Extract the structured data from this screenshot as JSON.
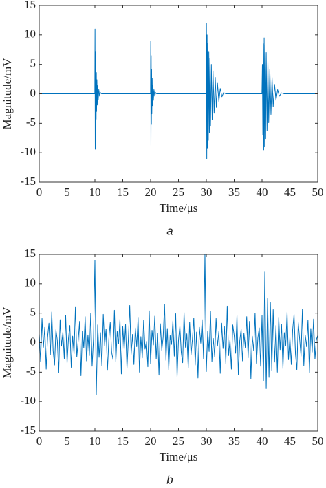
{
  "chart_data": [
    {
      "type": "line",
      "xlabel": "Time/μs",
      "ylabel": "Magnitude/mV",
      "caption": "a",
      "color": "#0072bd",
      "xlim": [
        0,
        50
      ],
      "ylim": [
        -15,
        15
      ],
      "xticks": [
        0,
        5,
        10,
        15,
        20,
        25,
        30,
        35,
        40,
        45,
        50
      ],
      "yticks": [
        -15,
        -10,
        -5,
        0,
        5,
        10,
        15
      ],
      "grid": false,
      "x": [
        0,
        9.98,
        10.02,
        10.06,
        10.1,
        10.14,
        10.18,
        10.22,
        10.26,
        10.3,
        10.36,
        10.42,
        10.5,
        10.6,
        10.7,
        10.85,
        11,
        11.2,
        19.98,
        20.02,
        20.06,
        20.1,
        20.14,
        20.18,
        20.22,
        20.28,
        20.34,
        20.42,
        20.5,
        20.6,
        20.75,
        20.9,
        21.1,
        29.98,
        30.02,
        30.08,
        30.14,
        30.2,
        30.28,
        30.36,
        30.45,
        30.55,
        30.65,
        30.75,
        30.9,
        31.05,
        31.2,
        31.4,
        31.6,
        31.8,
        32.0,
        32.25,
        32.5,
        32.8,
        33.1,
        33.5,
        39.98,
        40.06,
        40.14,
        40.22,
        40.3,
        40.38,
        40.46,
        40.55,
        40.65,
        40.75,
        40.9,
        41.05,
        41.2,
        41.4,
        41.6,
        41.8,
        42.0,
        42.25,
        42.5,
        42.8,
        43.1,
        43.5,
        44,
        50
      ],
      "values": [
        0,
        0,
        11,
        -9.4,
        7.2,
        -6,
        5,
        -4.3,
        3.6,
        -3,
        2.4,
        -1.9,
        1.4,
        -1,
        0.7,
        -0.4,
        0.2,
        0,
        0,
        9,
        -8.8,
        6.5,
        -5.2,
        4.2,
        -3.4,
        2.6,
        -2,
        1.5,
        -1.1,
        0.7,
        -0.4,
        0.2,
        0,
        0,
        12,
        -11,
        10,
        -9.3,
        8.6,
        -7.9,
        7.2,
        -6.6,
        6,
        -5.5,
        5,
        -4.4,
        3.9,
        -3.3,
        2.8,
        -2.3,
        1.8,
        -1.3,
        0.9,
        -0.5,
        0.2,
        0,
        0,
        5,
        -7,
        8.5,
        -9.5,
        9.5,
        -9,
        8.3,
        -7.6,
        7,
        -6.3,
        5.6,
        -4.9,
        4.2,
        -3.5,
        2.8,
        -2.2,
        1.6,
        -1.1,
        0.7,
        -0.4,
        0.15,
        0,
        0
      ]
    },
    {
      "type": "line",
      "xlabel": "Time/μs",
      "ylabel": "Magnitude/mV",
      "caption": "b",
      "color": "#0072bd",
      "xlim": [
        0,
        50
      ],
      "ylim": [
        -15,
        15
      ],
      "xticks": [
        0,
        5,
        10,
        15,
        20,
        25,
        30,
        35,
        40,
        45,
        50
      ],
      "yticks": [
        -15,
        -10,
        -5,
        0,
        5,
        10,
        15
      ],
      "grid": false,
      "x": [
        0,
        0.25,
        0.5,
        0.75,
        1,
        1.25,
        1.5,
        1.75,
        2,
        2.25,
        2.5,
        2.75,
        3,
        3.25,
        3.5,
        3.75,
        4,
        4.25,
        4.5,
        4.75,
        5,
        5.25,
        5.5,
        5.75,
        6,
        6.25,
        6.5,
        6.75,
        7,
        7.25,
        7.5,
        7.75,
        8,
        8.25,
        8.5,
        8.75,
        9,
        9.25,
        9.5,
        9.75,
        10,
        10.25,
        10.5,
        10.75,
        11,
        11.25,
        11.5,
        11.75,
        12,
        12.25,
        12.5,
        12.75,
        13,
        13.25,
        13.5,
        13.75,
        14,
        14.25,
        14.5,
        14.75,
        15,
        15.25,
        15.5,
        15.75,
        16,
        16.25,
        16.5,
        16.75,
        17,
        17.25,
        17.5,
        17.75,
        18,
        18.25,
        18.5,
        18.75,
        19,
        19.25,
        19.5,
        19.75,
        20,
        20.25,
        20.5,
        20.75,
        21,
        21.25,
        21.5,
        21.75,
        22,
        22.25,
        22.5,
        22.75,
        23,
        23.25,
        23.5,
        23.75,
        24,
        24.25,
        24.5,
        24.75,
        25,
        25.25,
        25.5,
        25.75,
        26,
        26.25,
        26.5,
        26.75,
        27,
        27.25,
        27.5,
        27.75,
        28,
        28.25,
        28.5,
        28.75,
        29,
        29.25,
        29.5,
        29.75,
        30,
        30.25,
        30.5,
        30.75,
        31,
        31.25,
        31.5,
        31.75,
        32,
        32.25,
        32.5,
        32.75,
        33,
        33.25,
        33.5,
        33.75,
        34,
        34.25,
        34.5,
        34.75,
        35,
        35.25,
        35.5,
        35.75,
        36,
        36.25,
        36.5,
        36.75,
        37,
        37.25,
        37.5,
        37.75,
        38,
        38.25,
        38.5,
        38.75,
        39,
        39.25,
        39.5,
        39.75,
        40,
        40.25,
        40.5,
        40.75,
        41,
        41.25,
        41.5,
        41.75,
        42,
        42.25,
        42.5,
        42.75,
        43,
        43.25,
        43.5,
        43.75,
        44,
        44.25,
        44.5,
        44.75,
        45,
        45.25,
        45.5,
        45.75,
        46,
        46.25,
        46.5,
        46.75,
        47,
        47.25,
        47.5,
        47.75,
        48,
        48.25,
        48.5,
        48.75,
        49,
        49.25,
        49.5,
        49.75,
        50
      ],
      "values": [
        1.5,
        -3.2,
        4.1,
        -0.8,
        2.6,
        -4.5,
        0.9,
        3.3,
        -2.1,
        5.2,
        -1.4,
        -3.8,
        2.2,
        0.4,
        -5.1,
        3.9,
        -0.6,
        1.8,
        -2.7,
        4.6,
        -3.5,
        0.7,
        2.9,
        -4.2,
        1.1,
        -1.9,
        6.1,
        -2.4,
        0.3,
        3.6,
        -5.6,
        2.0,
        -0.9,
        4.4,
        -3.1,
        1.3,
        -2.2,
        5.0,
        -4.0,
        0.8,
        14,
        -8.8,
        3.0,
        -2.5,
        1.7,
        -3.9,
        4.8,
        -0.5,
        2.3,
        -4.7,
        0.6,
        3.4,
        -1.6,
        -2.9,
        5.5,
        -3.3,
        1.9,
        -0.2,
        4.0,
        -5.3,
        2.7,
        -1.2,
        3.1,
        -4.4,
        0.5,
        6.3,
        -2.0,
        1.4,
        -3.7,
        2.5,
        -0.7,
        4.3,
        -5.0,
        1.0,
        -2.6,
        3.8,
        -1.1,
        0.2,
        -4.1,
        5.4,
        -3.6,
        2.1,
        -0.4,
        4.5,
        -2.8,
        1.6,
        -5.5,
        3.2,
        -1.3,
        0.9,
        6.5,
        -3.0,
        2.4,
        -4.6,
        1.2,
        -0.3,
        3.7,
        -2.3,
        4.9,
        -5.8,
        0.4,
        2.8,
        -1.7,
        -3.4,
        5.1,
        -0.8,
        1.5,
        -4.3,
        3.5,
        -2.1,
        0.6,
        4.2,
        -3.8,
        1.8,
        -6.0,
        2.6,
        -0.1,
        3.9,
        -2.7,
        15,
        -4.9,
        2.0,
        -1.5,
        5.3,
        -3.2,
        0.7,
        -2.4,
        4.1,
        -0.6,
        1.9,
        -5.2,
        3.3,
        -1.0,
        2.7,
        -3.6,
        6.2,
        -2.2,
        0.5,
        -4.5,
        3.0,
        1.2,
        -1.8,
        4.7,
        -5.4,
        0.3,
        2.3,
        -3.1,
        1.6,
        -0.9,
        4.4,
        -2.6,
        3.6,
        -6.1,
        1.1,
        -1.4,
        5.0,
        -3.5,
        0.8,
        2.5,
        -4.0,
        4.6,
        -6.5,
        12,
        -7.8,
        7.5,
        -5.9,
        6.8,
        -4.8,
        5.6,
        -3.3,
        2.9,
        -5.0,
        4.3,
        -1.2,
        3.1,
        -4.4,
        1.7,
        -0.5,
        5.2,
        -2.9,
        0.9,
        -3.7,
        2.2,
        4.8,
        -1.9,
        -4.6,
        3.4,
        0.6,
        -2.3,
        5.7,
        -3.9,
        1.3,
        -0.7,
        3.8,
        -5.1,
        2.4,
        -1.6,
        4.0,
        -2.8,
        0.5,
        1.2
      ]
    }
  ]
}
